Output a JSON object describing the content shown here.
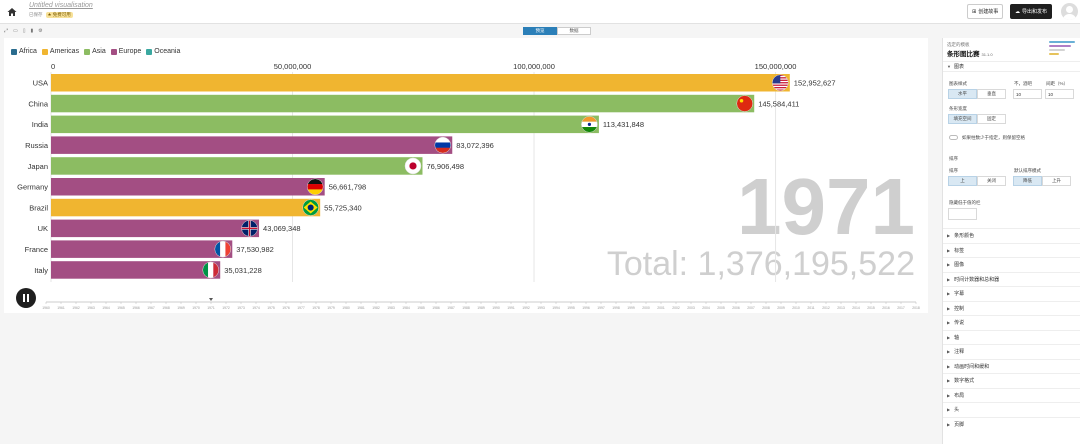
{
  "header": {
    "title": "Untitled visualisation",
    "saved": "已保存",
    "badge": "★ 免费可用",
    "new_story": "创建故事",
    "export_publish": "导出和发布"
  },
  "view_tabs": [
    "预览",
    "数据"
  ],
  "legend": [
    {
      "name": "Africa",
      "color": "#2a6c8e"
    },
    {
      "name": "Americas",
      "color": "#f0b530"
    },
    {
      "name": "Asia",
      "color": "#8cbc62"
    },
    {
      "name": "Europe",
      "color": "#a34e83"
    },
    {
      "name": "Oceania",
      "color": "#3aa8a0"
    }
  ],
  "chart_data": {
    "type": "bar",
    "orientation": "horizontal",
    "year": "1971",
    "total_label": "Total: 1,376,195,522",
    "xlim": [
      0,
      165000000
    ],
    "ticks": [
      {
        "value": 0,
        "label": "0"
      },
      {
        "value": 50000000,
        "label": "50,000,000"
      },
      {
        "value": 100000000,
        "label": "100,000,000"
      },
      {
        "value": 150000000,
        "label": "150,000,000"
      }
    ],
    "bars": [
      {
        "name": "USA",
        "value": 152952627,
        "label": "152,952,627",
        "region": "Americas",
        "flag": "usa"
      },
      {
        "name": "China",
        "value": 145584411,
        "label": "145,584,411",
        "region": "Asia",
        "flag": "china"
      },
      {
        "name": "India",
        "value": 113431848,
        "label": "113,431,848",
        "region": "Asia",
        "flag": "india"
      },
      {
        "name": "Russia",
        "value": 83072396,
        "label": "83,072,396",
        "region": "Europe",
        "flag": "russia"
      },
      {
        "name": "Japan",
        "value": 76906498,
        "label": "76,906,498",
        "region": "Asia",
        "flag": "japan"
      },
      {
        "name": "Germany",
        "value": 56661798,
        "label": "56,661,798",
        "region": "Europe",
        "flag": "germany"
      },
      {
        "name": "Brazil",
        "value": 55725340,
        "label": "55,725,340",
        "region": "Americas",
        "flag": "brazil"
      },
      {
        "name": "UK",
        "value": 43069348,
        "label": "43,069,348",
        "region": "Europe",
        "flag": "uk"
      },
      {
        "name": "France",
        "value": 37530982,
        "label": "37,530,982",
        "region": "Europe",
        "flag": "france"
      },
      {
        "name": "Italy",
        "value": 35031228,
        "label": "35,031,228",
        "region": "Europe",
        "flag": "italy"
      }
    ],
    "timeline": {
      "start": 1960,
      "end": 2018,
      "current": 1971
    }
  },
  "side": {
    "template_small": "选定的模板",
    "template_name": "条形图比赛",
    "version": "31.1.0",
    "section_open": "图表",
    "layout_label": "图表样式",
    "horizontal": "水平",
    "vertical": "垂直",
    "bars_label": "不，酒吧",
    "bars_value": "10",
    "gap_label": "间距（%）",
    "gap_value": "10",
    "bar_width_label": "条形宽度",
    "fill_space": "填充空间",
    "fixed": "固定",
    "toggle_text": "如果柱数少于指定，则保留空格",
    "sort_title": "排序",
    "sort_label": "排序",
    "sort_on": "上",
    "sort_off": "关闭",
    "sort_mode_label": "默认排序模式",
    "desc": "降低",
    "asc": "上升",
    "hide_label": "隐藏低于值的栏",
    "sections": [
      "条形颜色",
      "标签",
      "图像",
      "时间计数器和总和器",
      "字幕",
      "控制",
      "传说",
      "轴",
      "注释",
      "动画时间和缓和",
      "数字格式",
      "布局",
      "头",
      "页脚"
    ]
  }
}
